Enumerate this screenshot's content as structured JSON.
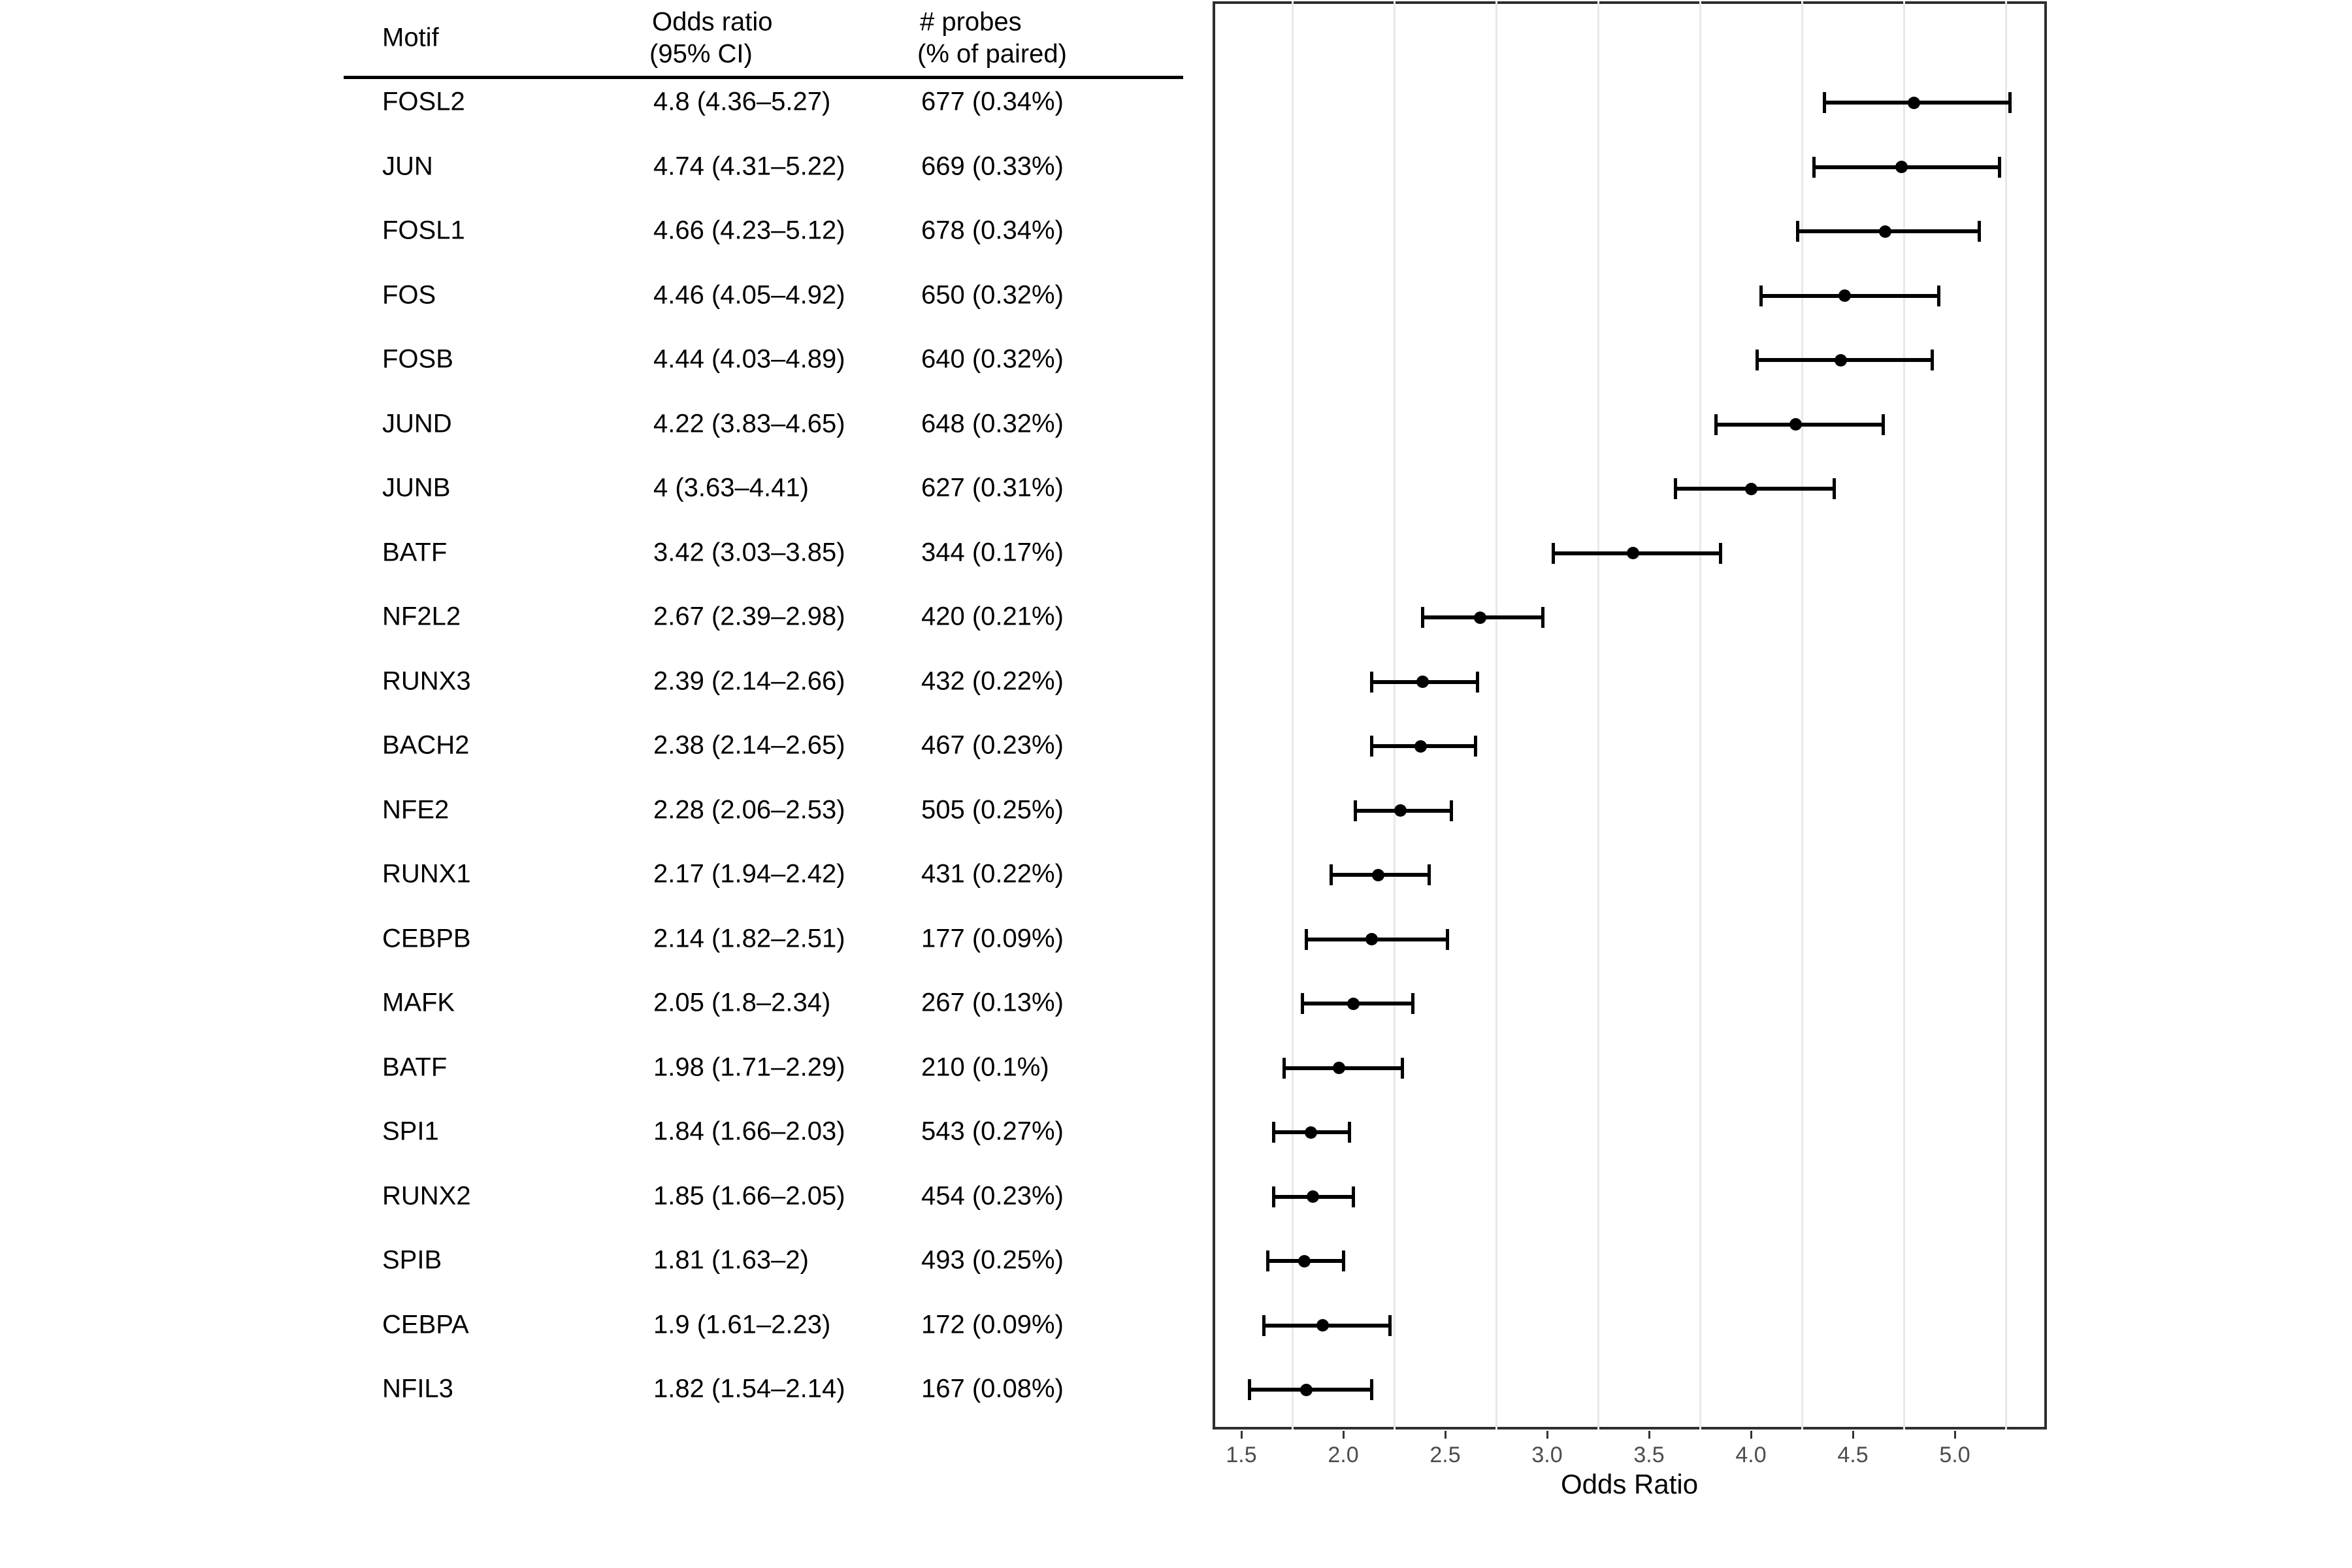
{
  "table": {
    "headers": {
      "motif": "Motif",
      "odds_line1": "Odds ratio",
      "odds_line2": "(95% CI)",
      "probes_line1": "# probes",
      "probes_line2": "(% of paired)"
    }
  },
  "chart_data": {
    "type": "scatter",
    "subtype": "forest-plot-horizontal-errorbars",
    "title": "",
    "xlabel": "Odds Ratio",
    "ylabel": "",
    "xlim": [
      1.36,
      5.45
    ],
    "x_ticks": [
      1.5,
      2.0,
      2.5,
      3.0,
      3.5,
      4.0,
      4.5,
      5.0
    ],
    "x_tick_labels": [
      "1.5",
      "2.0",
      "2.5",
      "3.0",
      "3.5",
      "4.0",
      "4.5",
      "5.0"
    ],
    "minor_gridlines": [
      1.75,
      2.25,
      2.75,
      3.25,
      3.75,
      4.25,
      4.75,
      5.25
    ],
    "grid": "minor vertical only, light gray",
    "legend": "none",
    "marker": "filled black circle with horizontal CI bar and end caps",
    "rows": [
      {
        "motif": "FOSL2",
        "or": 4.8,
        "lo": 4.36,
        "hi": 5.27,
        "or_ci": "4.8 (4.36–5.27)",
        "probes": "677 (0.34%)"
      },
      {
        "motif": "JUN",
        "or": 4.74,
        "lo": 4.31,
        "hi": 5.22,
        "or_ci": "4.74 (4.31–5.22)",
        "probes": "669 (0.33%)"
      },
      {
        "motif": "FOSL1",
        "or": 4.66,
        "lo": 4.23,
        "hi": 5.12,
        "or_ci": "4.66 (4.23–5.12)",
        "probes": "678 (0.34%)"
      },
      {
        "motif": "FOS",
        "or": 4.46,
        "lo": 4.05,
        "hi": 4.92,
        "or_ci": "4.46 (4.05–4.92)",
        "probes": "650 (0.32%)"
      },
      {
        "motif": "FOSB",
        "or": 4.44,
        "lo": 4.03,
        "hi": 4.89,
        "or_ci": "4.44 (4.03–4.89)",
        "probes": "640 (0.32%)"
      },
      {
        "motif": "JUND",
        "or": 4.22,
        "lo": 3.83,
        "hi": 4.65,
        "or_ci": "4.22 (3.83–4.65)",
        "probes": "648 (0.32%)"
      },
      {
        "motif": "JUNB",
        "or": 4.0,
        "lo": 3.63,
        "hi": 4.41,
        "or_ci": "4 (3.63–4.41)",
        "probes": "627 (0.31%)"
      },
      {
        "motif": "BATF",
        "or": 3.42,
        "lo": 3.03,
        "hi": 3.85,
        "or_ci": "3.42 (3.03–3.85)",
        "probes": "344 (0.17%)"
      },
      {
        "motif": "NF2L2",
        "or": 2.67,
        "lo": 2.39,
        "hi": 2.98,
        "or_ci": "2.67 (2.39–2.98)",
        "probes": "420 (0.21%)"
      },
      {
        "motif": "RUNX3",
        "or": 2.39,
        "lo": 2.14,
        "hi": 2.66,
        "or_ci": "2.39 (2.14–2.66)",
        "probes": "432 (0.22%)"
      },
      {
        "motif": "BACH2",
        "or": 2.38,
        "lo": 2.14,
        "hi": 2.65,
        "or_ci": "2.38 (2.14–2.65)",
        "probes": "467 (0.23%)"
      },
      {
        "motif": "NFE2",
        "or": 2.28,
        "lo": 2.06,
        "hi": 2.53,
        "or_ci": "2.28 (2.06–2.53)",
        "probes": "505 (0.25%)"
      },
      {
        "motif": "RUNX1",
        "or": 2.17,
        "lo": 1.94,
        "hi": 2.42,
        "or_ci": "2.17 (1.94–2.42)",
        "probes": "431 (0.22%)"
      },
      {
        "motif": "CEBPB",
        "or": 2.14,
        "lo": 1.82,
        "hi": 2.51,
        "or_ci": "2.14 (1.82–2.51)",
        "probes": "177 (0.09%)"
      },
      {
        "motif": "MAFK",
        "or": 2.05,
        "lo": 1.8,
        "hi": 2.34,
        "or_ci": "2.05 (1.8–2.34)",
        "probes": "267 (0.13%)"
      },
      {
        "motif": "BATF",
        "or": 1.98,
        "lo": 1.71,
        "hi": 2.29,
        "or_ci": "1.98 (1.71–2.29)",
        "probes": "210 (0.1%)"
      },
      {
        "motif": "SPI1",
        "or": 1.84,
        "lo": 1.66,
        "hi": 2.03,
        "or_ci": "1.84 (1.66–2.03)",
        "probes": "543 (0.27%)"
      },
      {
        "motif": "RUNX2",
        "or": 1.85,
        "lo": 1.66,
        "hi": 2.05,
        "or_ci": "1.85 (1.66–2.05)",
        "probes": "454 (0.23%)"
      },
      {
        "motif": "SPIB",
        "or": 1.81,
        "lo": 1.63,
        "hi": 2.0,
        "or_ci": "1.81 (1.63–2)",
        "probes": "493 (0.25%)"
      },
      {
        "motif": "CEBPA",
        "or": 1.9,
        "lo": 1.61,
        "hi": 2.23,
        "or_ci": "1.9 (1.61–2.23)",
        "probes": "172 (0.09%)"
      },
      {
        "motif": "NFIL3",
        "or": 1.82,
        "lo": 1.54,
        "hi": 2.14,
        "or_ci": "1.82 (1.54–2.14)",
        "probes": "167 (0.08%)"
      }
    ]
  },
  "colors": {
    "text": "#000000",
    "tick_label": "#4d4d4d",
    "panel_border": "#2e2e2e",
    "minor_gridline": "#e8e8e8",
    "marks": "#000000",
    "background": "#ffffff"
  }
}
